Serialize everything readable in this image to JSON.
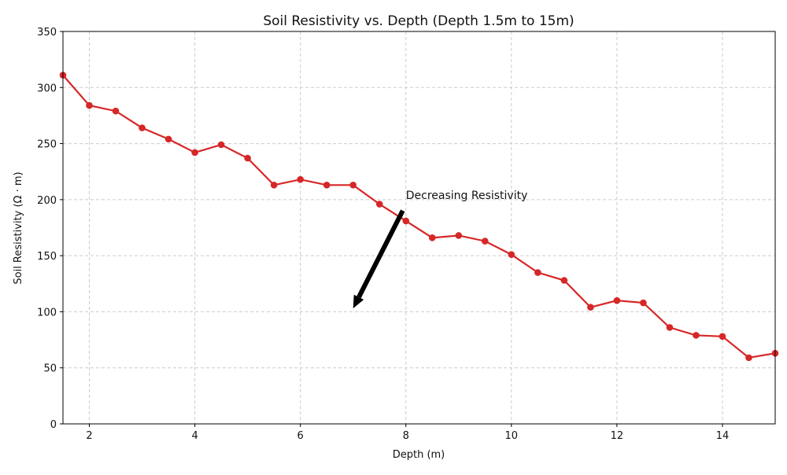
{
  "chart_data": {
    "type": "line",
    "title": "Soil Resistivity vs. Depth (Depth 1.5m to 15m)",
    "xlabel": "Depth (m)",
    "ylabel": "Soil Resistivity (Ω · m)",
    "xlim": [
      1.5,
      15
    ],
    "ylim": [
      0,
      350
    ],
    "xticks": [
      2,
      4,
      6,
      8,
      10,
      12,
      14
    ],
    "yticks": [
      0,
      50,
      100,
      150,
      200,
      250,
      300,
      350
    ],
    "grid": true,
    "line_color": "#d62728",
    "x": [
      1.5,
      2,
      2.5,
      3,
      3.5,
      4,
      4.5,
      5,
      5.5,
      6,
      6.5,
      7,
      7.5,
      8,
      8.5,
      9,
      9.5,
      10,
      10.5,
      11,
      11.5,
      12,
      12.5,
      13,
      13.5,
      14,
      14.5,
      15
    ],
    "y": [
      311,
      284,
      279,
      264,
      254,
      242,
      249,
      237,
      213,
      218,
      213,
      213,
      196,
      181,
      166,
      168,
      163,
      151,
      135,
      128,
      104,
      110,
      108,
      86,
      79,
      78,
      59,
      63
    ],
    "annotation": {
      "text": "Decreasing Resistivity",
      "xytext": [
        8,
        200
      ],
      "xy": [
        7,
        103
      ]
    }
  }
}
